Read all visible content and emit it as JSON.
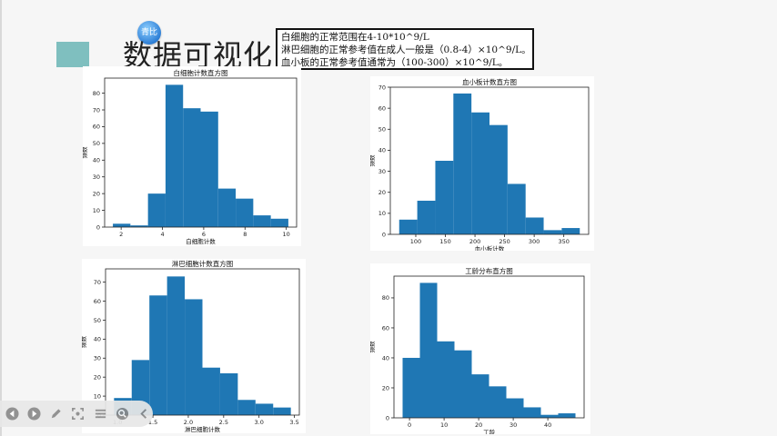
{
  "slide": {
    "title": "数据可视化",
    "logo_text": "青比亚",
    "accent_color": "#7fbfbf",
    "notes": [
      "白细胞的正常范围在4-10*10^9/L",
      "淋巴细胞的正常参考值在成人一般是（0.8-4）×10^9/L。",
      "血小板的正常参考值通常为（100-300）×10^9/L。"
    ]
  },
  "toolbar": {
    "icons": [
      "prev-icon",
      "next-icon",
      "pen-icon",
      "crop-icon",
      "menu-icon",
      "zoom-icon",
      "collapse-icon"
    ]
  },
  "chart_data": [
    {
      "type": "bar",
      "title": "白细胞计数直方图",
      "xlabel": "白细胞计数",
      "ylabel": "频数",
      "color": "#1f77b4",
      "bin_edges": [
        1.6,
        2.45,
        3.3,
        4.15,
        5.0,
        5.85,
        6.7,
        7.55,
        8.4,
        9.25,
        10.1
      ],
      "values": [
        2,
        1,
        20,
        85,
        71,
        69,
        23,
        17,
        7,
        5
      ],
      "xlim": [
        1.2,
        10.5
      ],
      "ylim": [
        0,
        89
      ],
      "xticks": [
        2,
        4,
        6,
        8,
        10
      ],
      "yticks": [
        0,
        10,
        20,
        30,
        40,
        50,
        60,
        70,
        80
      ]
    },
    {
      "type": "bar",
      "title": "血小板计数直方图",
      "xlabel": "血小板计数",
      "ylabel": "频数",
      "color": "#1f77b4",
      "bin_edges": [
        72,
        102.5,
        133,
        163.5,
        194,
        224.5,
        255,
        285.5,
        316,
        346.5,
        377
      ],
      "values": [
        7,
        16,
        35,
        67,
        58,
        52,
        24,
        8,
        2,
        3
      ],
      "xlim": [
        57,
        392
      ],
      "ylim": [
        0,
        70
      ],
      "xticks": [
        100,
        150,
        200,
        250,
        300,
        350
      ],
      "yticks": [
        0,
        10,
        20,
        30,
        40,
        50,
        60,
        70
      ]
    },
    {
      "type": "bar",
      "title": "淋巴细胞计数直方图",
      "xlabel": "淋巴细胞计数",
      "ylabel": "频数",
      "color": "#1f77b4",
      "bin_edges": [
        0.95,
        1.2,
        1.45,
        1.7,
        1.95,
        2.2,
        2.45,
        2.7,
        2.95,
        3.2,
        3.45
      ],
      "values": [
        9,
        29,
        63,
        73,
        61,
        25,
        22,
        8,
        6,
        4
      ],
      "xlim": [
        0.83,
        3.57
      ],
      "ylim": [
        0,
        77
      ],
      "xticks": [
        1.0,
        1.5,
        2.0,
        2.5,
        3.0,
        3.5
      ],
      "xtick_labels": [
        "1.0",
        "1.5",
        "2.0",
        "2.5",
        "3.0",
        "3.5"
      ],
      "yticks": [
        0,
        10,
        20,
        30,
        40,
        50,
        60,
        70
      ]
    },
    {
      "type": "bar",
      "title": "工龄分布直方图",
      "xlabel": "工龄",
      "ylabel": "频数",
      "color": "#1f77b4",
      "bin_edges": [
        -2,
        3,
        8,
        13,
        18,
        23,
        28,
        33,
        38,
        43,
        48
      ],
      "values": [
        40,
        90,
        51,
        45,
        29,
        21,
        13,
        7,
        2,
        3
      ],
      "xlim": [
        -4.5,
        50.5
      ],
      "ylim": [
        0,
        94.5
      ],
      "xticks": [
        0,
        10,
        20,
        30,
        40
      ],
      "yticks": [
        0,
        20,
        40,
        60,
        80
      ]
    }
  ]
}
